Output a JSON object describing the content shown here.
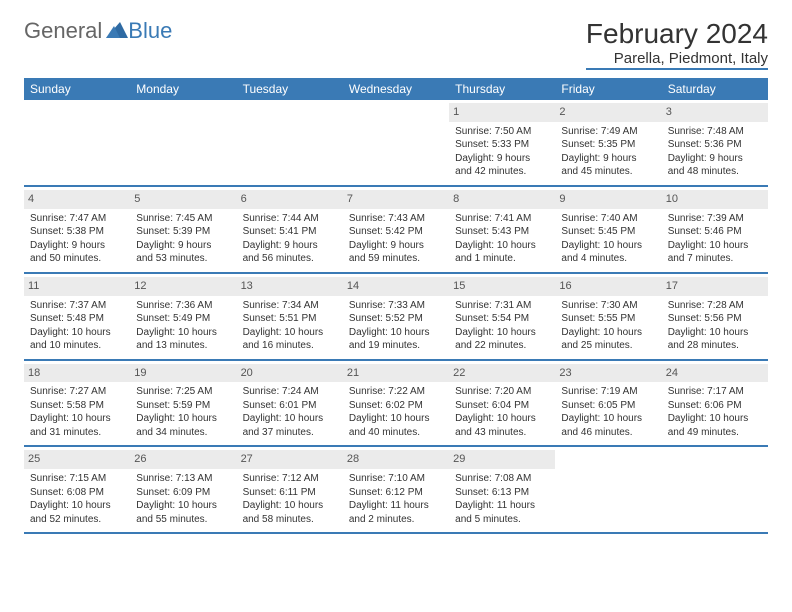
{
  "logo": {
    "text_general": "General",
    "text_blue": "Blue"
  },
  "title": "February 2024",
  "location": "Parella, Piedmont, Italy",
  "colors": {
    "header_bg": "#3a7ab5",
    "header_text": "#ffffff",
    "daynum_bg": "#ebebeb",
    "body_text": "#333333",
    "rule": "#3a7ab5"
  },
  "day_headers": [
    "Sunday",
    "Monday",
    "Tuesday",
    "Wednesday",
    "Thursday",
    "Friday",
    "Saturday"
  ],
  "weeks": [
    [
      {
        "n": "",
        "sr": "",
        "ss": "",
        "dl": ""
      },
      {
        "n": "",
        "sr": "",
        "ss": "",
        "dl": ""
      },
      {
        "n": "",
        "sr": "",
        "ss": "",
        "dl": ""
      },
      {
        "n": "",
        "sr": "",
        "ss": "",
        "dl": ""
      },
      {
        "n": "1",
        "sr": "Sunrise: 7:50 AM",
        "ss": "Sunset: 5:33 PM",
        "dl": "Daylight: 9 hours and 42 minutes."
      },
      {
        "n": "2",
        "sr": "Sunrise: 7:49 AM",
        "ss": "Sunset: 5:35 PM",
        "dl": "Daylight: 9 hours and 45 minutes."
      },
      {
        "n": "3",
        "sr": "Sunrise: 7:48 AM",
        "ss": "Sunset: 5:36 PM",
        "dl": "Daylight: 9 hours and 48 minutes."
      }
    ],
    [
      {
        "n": "4",
        "sr": "Sunrise: 7:47 AM",
        "ss": "Sunset: 5:38 PM",
        "dl": "Daylight: 9 hours and 50 minutes."
      },
      {
        "n": "5",
        "sr": "Sunrise: 7:45 AM",
        "ss": "Sunset: 5:39 PM",
        "dl": "Daylight: 9 hours and 53 minutes."
      },
      {
        "n": "6",
        "sr": "Sunrise: 7:44 AM",
        "ss": "Sunset: 5:41 PM",
        "dl": "Daylight: 9 hours and 56 minutes."
      },
      {
        "n": "7",
        "sr": "Sunrise: 7:43 AM",
        "ss": "Sunset: 5:42 PM",
        "dl": "Daylight: 9 hours and 59 minutes."
      },
      {
        "n": "8",
        "sr": "Sunrise: 7:41 AM",
        "ss": "Sunset: 5:43 PM",
        "dl": "Daylight: 10 hours and 1 minute."
      },
      {
        "n": "9",
        "sr": "Sunrise: 7:40 AM",
        "ss": "Sunset: 5:45 PM",
        "dl": "Daylight: 10 hours and 4 minutes."
      },
      {
        "n": "10",
        "sr": "Sunrise: 7:39 AM",
        "ss": "Sunset: 5:46 PM",
        "dl": "Daylight: 10 hours and 7 minutes."
      }
    ],
    [
      {
        "n": "11",
        "sr": "Sunrise: 7:37 AM",
        "ss": "Sunset: 5:48 PM",
        "dl": "Daylight: 10 hours and 10 minutes."
      },
      {
        "n": "12",
        "sr": "Sunrise: 7:36 AM",
        "ss": "Sunset: 5:49 PM",
        "dl": "Daylight: 10 hours and 13 minutes."
      },
      {
        "n": "13",
        "sr": "Sunrise: 7:34 AM",
        "ss": "Sunset: 5:51 PM",
        "dl": "Daylight: 10 hours and 16 minutes."
      },
      {
        "n": "14",
        "sr": "Sunrise: 7:33 AM",
        "ss": "Sunset: 5:52 PM",
        "dl": "Daylight: 10 hours and 19 minutes."
      },
      {
        "n": "15",
        "sr": "Sunrise: 7:31 AM",
        "ss": "Sunset: 5:54 PM",
        "dl": "Daylight: 10 hours and 22 minutes."
      },
      {
        "n": "16",
        "sr": "Sunrise: 7:30 AM",
        "ss": "Sunset: 5:55 PM",
        "dl": "Daylight: 10 hours and 25 minutes."
      },
      {
        "n": "17",
        "sr": "Sunrise: 7:28 AM",
        "ss": "Sunset: 5:56 PM",
        "dl": "Daylight: 10 hours and 28 minutes."
      }
    ],
    [
      {
        "n": "18",
        "sr": "Sunrise: 7:27 AM",
        "ss": "Sunset: 5:58 PM",
        "dl": "Daylight: 10 hours and 31 minutes."
      },
      {
        "n": "19",
        "sr": "Sunrise: 7:25 AM",
        "ss": "Sunset: 5:59 PM",
        "dl": "Daylight: 10 hours and 34 minutes."
      },
      {
        "n": "20",
        "sr": "Sunrise: 7:24 AM",
        "ss": "Sunset: 6:01 PM",
        "dl": "Daylight: 10 hours and 37 minutes."
      },
      {
        "n": "21",
        "sr": "Sunrise: 7:22 AM",
        "ss": "Sunset: 6:02 PM",
        "dl": "Daylight: 10 hours and 40 minutes."
      },
      {
        "n": "22",
        "sr": "Sunrise: 7:20 AM",
        "ss": "Sunset: 6:04 PM",
        "dl": "Daylight: 10 hours and 43 minutes."
      },
      {
        "n": "23",
        "sr": "Sunrise: 7:19 AM",
        "ss": "Sunset: 6:05 PM",
        "dl": "Daylight: 10 hours and 46 minutes."
      },
      {
        "n": "24",
        "sr": "Sunrise: 7:17 AM",
        "ss": "Sunset: 6:06 PM",
        "dl": "Daylight: 10 hours and 49 minutes."
      }
    ],
    [
      {
        "n": "25",
        "sr": "Sunrise: 7:15 AM",
        "ss": "Sunset: 6:08 PM",
        "dl": "Daylight: 10 hours and 52 minutes."
      },
      {
        "n": "26",
        "sr": "Sunrise: 7:13 AM",
        "ss": "Sunset: 6:09 PM",
        "dl": "Daylight: 10 hours and 55 minutes."
      },
      {
        "n": "27",
        "sr": "Sunrise: 7:12 AM",
        "ss": "Sunset: 6:11 PM",
        "dl": "Daylight: 10 hours and 58 minutes."
      },
      {
        "n": "28",
        "sr": "Sunrise: 7:10 AM",
        "ss": "Sunset: 6:12 PM",
        "dl": "Daylight: 11 hours and 2 minutes."
      },
      {
        "n": "29",
        "sr": "Sunrise: 7:08 AM",
        "ss": "Sunset: 6:13 PM",
        "dl": "Daylight: 11 hours and 5 minutes."
      },
      {
        "n": "",
        "sr": "",
        "ss": "",
        "dl": ""
      },
      {
        "n": "",
        "sr": "",
        "ss": "",
        "dl": ""
      }
    ]
  ]
}
